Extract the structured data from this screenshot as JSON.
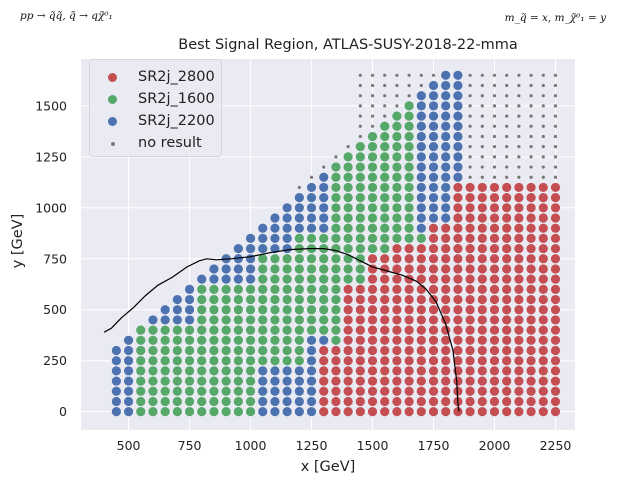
{
  "corner_left": "pp → q̃q̃, q̃ → qχ̃⁰₁",
  "corner_right": "m_q̃ = x, m_χ̃⁰₁ = y",
  "chart_data": {
    "type": "scatter",
    "title": "Best Signal Region, ATLAS-SUSY-2018-22-mma",
    "xlabel": "x [GeV]",
    "ylabel": "y [GeV]",
    "xlim": [
      305,
      2330
    ],
    "ylim": [
      -90,
      1730
    ],
    "xticks": [
      500,
      750,
      1000,
      1250,
      1500,
      1750,
      2000,
      2250
    ],
    "yticks": [
      0,
      250,
      500,
      750,
      1000,
      1250,
      1500
    ],
    "grid": true,
    "legend_position": "top-left",
    "background": "#eaeaf2",
    "grid_spacing": 50,
    "legend": [
      {
        "name": "SR2j_2800",
        "color": "#c44e52",
        "marker": "dot"
      },
      {
        "name": "SR2j_1600",
        "color": "#55a868",
        "marker": "dot"
      },
      {
        "name": "SR2j_2200",
        "color": "#4c72b0",
        "marker": "dot"
      },
      {
        "name": "no result",
        "color": "#777777",
        "marker": "small-dot"
      }
    ],
    "region_rules": {
      "red": [
        {
          "x_min": 1300,
          "x_max": 1400,
          "y_max": 300
        },
        {
          "x_min": 1400,
          "x_max": 1500,
          "y_max": 600
        },
        {
          "x_min": 1500,
          "x_max": 1600,
          "y_max": 750
        },
        {
          "x_min": 1600,
          "x_max": 1750,
          "y_max": 800
        },
        {
          "x_min": 1750,
          "x_max": 1850,
          "y_max": 900
        },
        {
          "x_min": 1850,
          "x_max": 2250,
          "y_max": 1100
        }
      ],
      "blue": [
        {
          "x_min": 450,
          "x_max": 500,
          "y_max": 400
        },
        {
          "x_min": 550,
          "x_max": 750,
          "y_min": 450
        },
        {
          "x_min": 800,
          "x_max": 1000,
          "y_min": 650
        },
        {
          "x_min": 1050,
          "x_max": 1150,
          "y_min": 800
        },
        {
          "x_min": 1050,
          "x_max": 1200,
          "y_max": 200
        },
        {
          "x_min": 1200,
          "x_max": 1300,
          "y_min": 900
        },
        {
          "x_min": 1250,
          "x_max": 1300,
          "y_max": 350
        },
        {
          "x_min": 1700,
          "x_max": 1850,
          "y_min": 900
        }
      ],
      "green": "remaining diagonal band between the blue edges and the red block"
    },
    "exclusion_contour": [
      [
        400,
        390
      ],
      [
        430,
        410
      ],
      [
        470,
        460
      ],
      [
        520,
        510
      ],
      [
        570,
        570
      ],
      [
        620,
        620
      ],
      [
        680,
        660
      ],
      [
        740,
        710
      ],
      [
        790,
        740
      ],
      [
        820,
        750
      ],
      [
        860,
        745
      ],
      [
        920,
        750
      ],
      [
        1000,
        760
      ],
      [
        1080,
        780
      ],
      [
        1160,
        795
      ],
      [
        1240,
        800
      ],
      [
        1300,
        800
      ],
      [
        1350,
        790
      ],
      [
        1400,
        770
      ],
      [
        1450,
        740
      ],
      [
        1500,
        710
      ],
      [
        1560,
        690
      ],
      [
        1620,
        670
      ],
      [
        1680,
        640
      ],
      [
        1720,
        600
      ],
      [
        1760,
        540
      ],
      [
        1800,
        430
      ],
      [
        1830,
        300
      ],
      [
        1845,
        150
      ],
      [
        1850,
        40
      ],
      [
        1855,
        0
      ]
    ]
  }
}
